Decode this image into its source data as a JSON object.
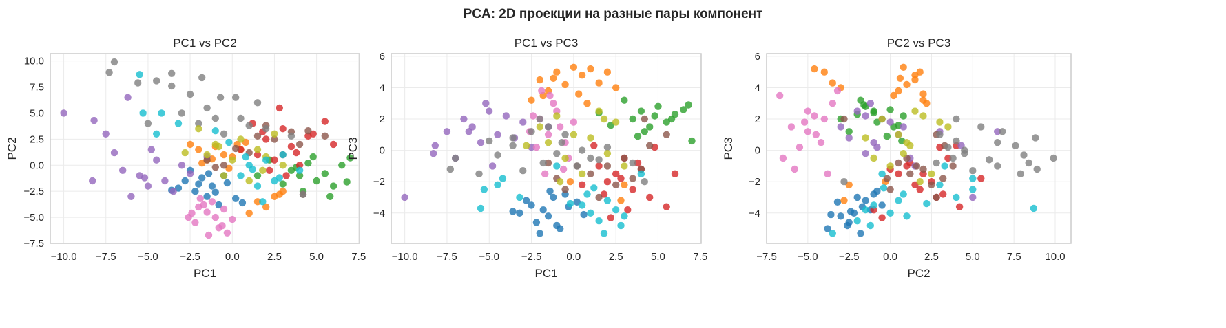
{
  "chart_data": {
    "type": "scatter",
    "suptitle": "PCA: 2D проекции на разные пары компонент",
    "grid": true,
    "legend": "none",
    "components": [
      "PC1",
      "PC2",
      "PC3"
    ],
    "classes": [
      {
        "color": "#1f77b4",
        "points": [
          [
            -2.8,
            -1.5,
            -3.2
          ],
          [
            -2.2,
            -2.5,
            -4.6
          ],
          [
            -1.8,
            -1.2,
            -3.8
          ],
          [
            -1.5,
            -3.0,
            -4.2
          ],
          [
            -1.2,
            -2.0,
            -3.0
          ],
          [
            -0.8,
            -3.8,
            -5.0
          ],
          [
            -0.5,
            -1.0,
            -2.8
          ],
          [
            -2.5,
            -0.5,
            -3.5
          ],
          [
            -3.2,
            -2.2,
            -4.0
          ],
          [
            -1.0,
            -2.6,
            -4.8
          ],
          [
            0.2,
            -3.2,
            -3.3
          ],
          [
            -2.0,
            -1.8,
            -5.3
          ],
          [
            -1.4,
            -0.8,
            -2.6
          ],
          [
            0.6,
            -3.6,
            -4.1
          ],
          [
            -3.6,
            -2.4,
            -3.9
          ],
          [
            -0.3,
            -1.7,
            -3.6
          ]
        ]
      },
      {
        "color": "#ff7f0e",
        "points": [
          [
            -2.0,
            1.5,
            4.5
          ],
          [
            -1.5,
            0.5,
            3.8
          ],
          [
            -1.0,
            1.8,
            5.0
          ],
          [
            -0.5,
            1.0,
            4.2
          ],
          [
            0.0,
            0.8,
            5.3
          ],
          [
            0.5,
            1.5,
            4.8
          ],
          [
            -2.5,
            2.0,
            3.2
          ],
          [
            -1.8,
            0.2,
            3.5
          ],
          [
            0.8,
            2.2,
            3.0
          ],
          [
            1.5,
            -3.5,
            4.3
          ],
          [
            2.0,
            -4.0,
            5.0
          ],
          [
            1.0,
            -4.6,
            5.2
          ],
          [
            2.5,
            -3.0,
            4.0
          ],
          [
            -0.2,
            -0.3,
            -2.0
          ],
          [
            2.8,
            -2.8,
            -3.2
          ],
          [
            -1.2,
            0.6,
            4.6
          ],
          [
            3.0,
            -2.5,
            -2.2
          ],
          [
            0.3,
            2.0,
            3.6
          ]
        ]
      },
      {
        "color": "#2ca02c",
        "points": [
          [
            3.5,
            -0.5,
            2.0
          ],
          [
            4.0,
            -1.0,
            2.5
          ],
          [
            4.5,
            0.2,
            1.5
          ],
          [
            5.0,
            -1.5,
            2.8
          ],
          [
            5.5,
            -0.8,
            1.8
          ],
          [
            6.0,
            -2.0,
            2.3
          ],
          [
            6.5,
            0.0,
            2.6
          ],
          [
            7.0,
            0.7,
            0.6
          ],
          [
            4.2,
            -2.5,
            1.2
          ],
          [
            3.0,
            -1.8,
            3.2
          ],
          [
            5.8,
            -3.0,
            2.0
          ],
          [
            4.8,
            0.8,
            2.2
          ],
          [
            6.8,
            -1.6,
            2.9
          ],
          [
            3.8,
            -0.2,
            0.9
          ],
          [
            2.2,
            0.5,
            1.6
          ],
          [
            1.5,
            -1.0,
            2.4
          ]
        ]
      },
      {
        "color": "#d62728",
        "points": [
          [
            1.5,
            1.0,
            -1.0
          ],
          [
            2.0,
            2.5,
            -2.0
          ],
          [
            2.5,
            0.5,
            -1.5
          ],
          [
            3.0,
            3.5,
            -0.5
          ],
          [
            3.5,
            1.8,
            -2.5
          ],
          [
            4.0,
            0.0,
            -1.2
          ],
          [
            4.5,
            2.8,
            -3.0
          ],
          [
            2.8,
            5.5,
            -1.8
          ],
          [
            5.5,
            4.2,
            -3.6
          ],
          [
            6.0,
            2.0,
            -1.5
          ],
          [
            3.2,
            -1.0,
            -3.8
          ],
          [
            1.2,
            4.0,
            0.3
          ],
          [
            3.8,
            1.2,
            -0.8
          ],
          [
            2.2,
            -0.5,
            -4.3
          ],
          [
            4.8,
            3.0,
            0.2
          ],
          [
            0.5,
            1.5,
            -2.2
          ],
          [
            1.8,
            3.2,
            -2.8
          ]
        ]
      },
      {
        "color": "#9467bd",
        "points": [
          [
            -10.0,
            5.0,
            -3.0
          ],
          [
            -8.3,
            -1.5,
            -0.2
          ],
          [
            -8.2,
            4.3,
            0.3
          ],
          [
            -7.5,
            3.0,
            1.2
          ],
          [
            -7.0,
            1.2,
            -0.5
          ],
          [
            -6.5,
            -0.5,
            2.0
          ],
          [
            -6.0,
            -3.0,
            1.5
          ],
          [
            -5.5,
            -1.0,
            0.5
          ],
          [
            -5.0,
            -2.0,
            2.5
          ],
          [
            -4.5,
            0.5,
            1.0
          ],
          [
            -4.0,
            -1.5,
            2.2
          ],
          [
            -3.5,
            -2.5,
            0.8
          ],
          [
            -3.0,
            0.0,
            1.8
          ],
          [
            -5.2,
            -1.2,
            3.0
          ],
          [
            -6.2,
            6.5,
            1.2
          ],
          [
            -2.5,
            -0.8,
            0.2
          ],
          [
            -4.8,
            1.5,
            -1.0
          ],
          [
            -1.5,
            0.8,
            1.5
          ]
        ]
      },
      {
        "color": "#8c564b",
        "points": [
          [
            1.0,
            1.2,
            -1.5
          ],
          [
            2.0,
            3.8,
            -1.0
          ],
          [
            2.5,
            2.5,
            -2.2
          ],
          [
            3.0,
            1.0,
            -0.5
          ],
          [
            3.5,
            3.2,
            -1.8
          ],
          [
            4.0,
            2.0,
            -1.2
          ],
          [
            4.5,
            3.3,
            0.3
          ],
          [
            5.5,
            2.8,
            1.0
          ],
          [
            -1.5,
            0.5,
            -0.8
          ],
          [
            -0.5,
            0.0,
            -2.5
          ],
          [
            1.5,
            2.8,
            -3.0
          ],
          [
            4.2,
            -2.8,
            2.0
          ],
          [
            -1.0,
            -0.2,
            -1.8
          ],
          [
            0.2,
            1.6,
            -1.0
          ]
        ]
      },
      {
        "color": "#e377c2",
        "points": [
          [
            -2.0,
            -4.0,
            2.0
          ],
          [
            -1.5,
            -4.5,
            1.0
          ],
          [
            -1.0,
            -5.0,
            2.5
          ],
          [
            -0.5,
            -4.2,
            0.5
          ],
          [
            -1.2,
            -3.5,
            3.0
          ],
          [
            -0.8,
            -6.0,
            1.5
          ],
          [
            -0.3,
            -6.5,
            -0.5
          ],
          [
            -2.2,
            -5.5,
            0.2
          ],
          [
            -1.7,
            -3.8,
            -1.5
          ],
          [
            0.0,
            -5.2,
            1.8
          ],
          [
            -1.4,
            -6.7,
            3.5
          ],
          [
            -2.4,
            -4.6,
            2.2
          ],
          [
            -0.6,
            -5.8,
            -1.2
          ],
          [
            -1.9,
            -3.2,
            3.8
          ],
          [
            -2.6,
            -5.0,
            1.2
          ]
        ]
      },
      {
        "color": "#7f7f7f",
        "points": [
          [
            -7.0,
            9.9,
            -0.5
          ],
          [
            -7.3,
            8.9,
            -1.2
          ],
          [
            -3.6,
            8.8,
            0.8
          ],
          [
            -1.8,
            8.4,
            -0.8
          ],
          [
            -5.6,
            7.9,
            -1.5
          ],
          [
            -4.5,
            8.1,
            -0.3
          ],
          [
            -3.6,
            7.6,
            0.3
          ],
          [
            -2.5,
            6.8,
            1.2
          ],
          [
            -0.7,
            6.5,
            0.5
          ],
          [
            0.2,
            6.5,
            -1.0
          ],
          [
            -1.5,
            5.5,
            1.5
          ],
          [
            0.5,
            4.5,
            0.0
          ],
          [
            -2.0,
            4.0,
            2.0
          ],
          [
            1.0,
            3.8,
            -0.5
          ],
          [
            -0.5,
            3.0,
            1.0
          ],
          [
            2.0,
            3.5,
            0.2
          ],
          [
            -3.0,
            5.0,
            -1.3
          ],
          [
            -1.0,
            4.5,
            -0.2
          ],
          [
            3.5,
            2.8,
            -0.8
          ],
          [
            -5.0,
            4.0,
            0.6
          ],
          [
            1.5,
            6.0,
            -0.6
          ],
          [
            4.2,
            -2.8,
            -2.0
          ]
        ]
      },
      {
        "color": "#bcbd22",
        "points": [
          [
            -2.0,
            3.5,
            1.5
          ],
          [
            -1.5,
            1.0,
            0.5
          ],
          [
            -1.0,
            2.0,
            2.2
          ],
          [
            -0.5,
            -1.0,
            -0.5
          ],
          [
            0.0,
            0.5,
            1.0
          ],
          [
            0.5,
            2.5,
            -1.5
          ],
          [
            1.0,
            -1.5,
            0.8
          ],
          [
            1.5,
            1.5,
            2.5
          ],
          [
            2.0,
            0.8,
            -0.2
          ],
          [
            2.5,
            3.0,
            1.8
          ],
          [
            3.0,
            0.0,
            -1.0
          ],
          [
            -2.8,
            1.2,
            0.3
          ],
          [
            1.8,
            -0.5,
            2.0
          ],
          [
            -0.8,
            1.8,
            -2.0
          ]
        ]
      },
      {
        "color": "#17becf",
        "points": [
          [
            0.5,
            -1.0,
            -3.5
          ],
          [
            1.0,
            0.0,
            -4.0
          ],
          [
            1.5,
            -2.0,
            -4.5
          ],
          [
            2.0,
            0.5,
            -3.2
          ],
          [
            2.5,
            -1.5,
            -3.8
          ],
          [
            3.0,
            1.0,
            -4.2
          ],
          [
            1.8,
            -3.5,
            -5.3
          ],
          [
            0.8,
            0.8,
            -2.8
          ],
          [
            -5.5,
            8.7,
            -3.7
          ],
          [
            -5.3,
            5.0,
            -2.5
          ],
          [
            -4.2,
            5.0,
            -1.8
          ],
          [
            -3.2,
            4.0,
            -3.0
          ],
          [
            -4.5,
            3.0,
            -2.2
          ],
          [
            4.0,
            -0.5,
            -1.5
          ],
          [
            -0.2,
            2.2,
            -3.4
          ],
          [
            2.8,
            -1.2,
            -4.8
          ],
          [
            1.2,
            -0.4,
            -2.4
          ],
          [
            -1.0,
            3.3,
            -1.0
          ]
        ]
      }
    ],
    "panels": [
      {
        "title": "PC1 vs PC2",
        "xlabel": "PC1",
        "ylabel": "PC2",
        "x_component": 0,
        "y_component": 1,
        "xlim": [
          -10.8,
          7.55
        ],
        "ylim": [
          -7.5,
          10.7
        ],
        "xticks": [
          -10.0,
          -7.5,
          -5.0,
          -2.5,
          0.0,
          2.5,
          5.0,
          7.5
        ],
        "xtick_labels": [
          "−10.0",
          "−7.5",
          "−5.0",
          "−2.5",
          "0.0",
          "2.5",
          "5.0",
          "7.5"
        ],
        "yticks": [
          -7.5,
          -5.0,
          -2.5,
          0.0,
          2.5,
          5.0,
          7.5,
          10.0
        ],
        "ytick_labels": [
          "−7.5",
          "−5.0",
          "−2.5",
          "0.0",
          "2.5",
          "5.0",
          "7.5",
          "10.0"
        ]
      },
      {
        "title": "PC1 vs PC3",
        "xlabel": "PC1",
        "ylabel": "PC3",
        "x_component": 0,
        "y_component": 2,
        "xlim": [
          -10.8,
          7.55
        ],
        "ylim": [
          -5.94,
          6.17
        ],
        "xticks": [
          -10.0,
          -7.5,
          -5.0,
          -2.5,
          0.0,
          2.5,
          5.0,
          7.5
        ],
        "xtick_labels": [
          "−10.0",
          "−7.5",
          "−5.0",
          "−2.5",
          "0.0",
          "2.5",
          "5.0",
          "7.5"
        ],
        "yticks": [
          -4,
          -2,
          0,
          2,
          4,
          6
        ],
        "ytick_labels": [
          "−4",
          "−2",
          "0",
          "2",
          "4",
          "6"
        ]
      },
      {
        "title": "PC2 vs PC3",
        "xlabel": "PC2",
        "ylabel": "PC3",
        "x_component": 1,
        "y_component": 2,
        "xlim": [
          -7.5,
          10.96
        ],
        "ylim": [
          -5.94,
          6.17
        ],
        "xticks": [
          -7.5,
          -5.0,
          -2.5,
          0.0,
          2.5,
          5.0,
          7.5,
          10.0
        ],
        "xtick_labels": [
          "−7.5",
          "−5.0",
          "−2.5",
          "0.0",
          "2.5",
          "5.0",
          "7.5",
          "10.0"
        ],
        "yticks": [
          -4,
          -2,
          0,
          2,
          4,
          6
        ],
        "ytick_labels": [
          "−4",
          "−2",
          "0",
          "2",
          "4",
          "6"
        ]
      }
    ]
  }
}
